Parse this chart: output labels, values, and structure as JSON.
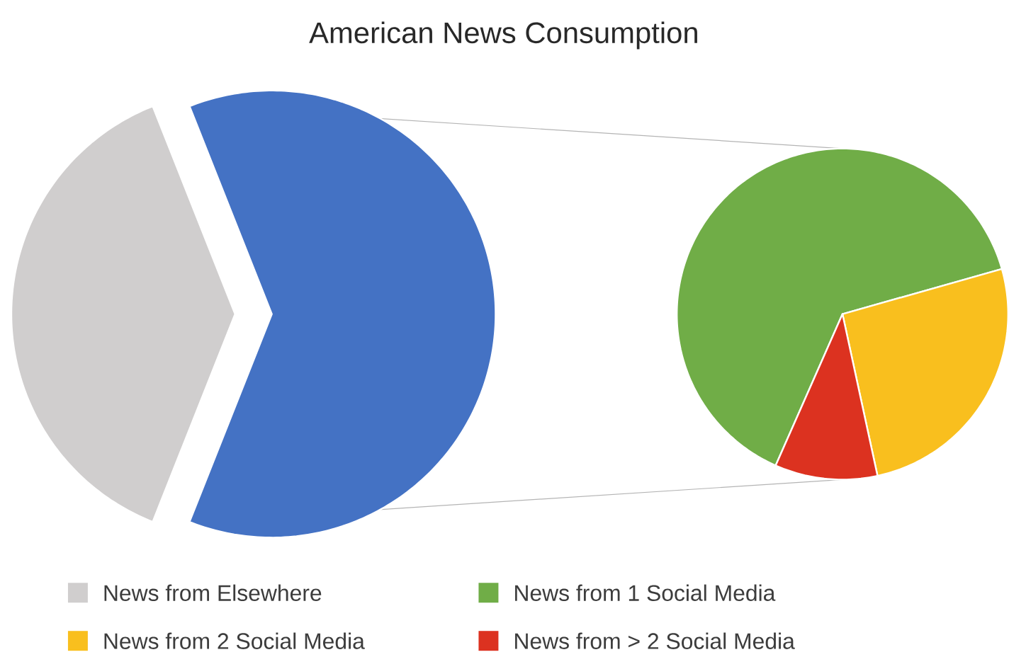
{
  "chart_data": [
    {
      "type": "pie",
      "title": "American News Consumption",
      "categories": [
        "News from Elsewhere",
        null
      ],
      "values": [
        38,
        62
      ],
      "colors": [
        "#d0cece",
        "#4472c4"
      ],
      "legend": "bottom"
    },
    {
      "type": "pie",
      "categories": [
        "News from 1 Social Media",
        "News from 2 Social Media",
        "News from > 2 Social Media"
      ],
      "values": [
        64,
        26,
        10
      ],
      "colors": [
        "#70ad47",
        "#f9bf1e",
        "#dc3220"
      ],
      "legend": "bottom"
    }
  ]
}
